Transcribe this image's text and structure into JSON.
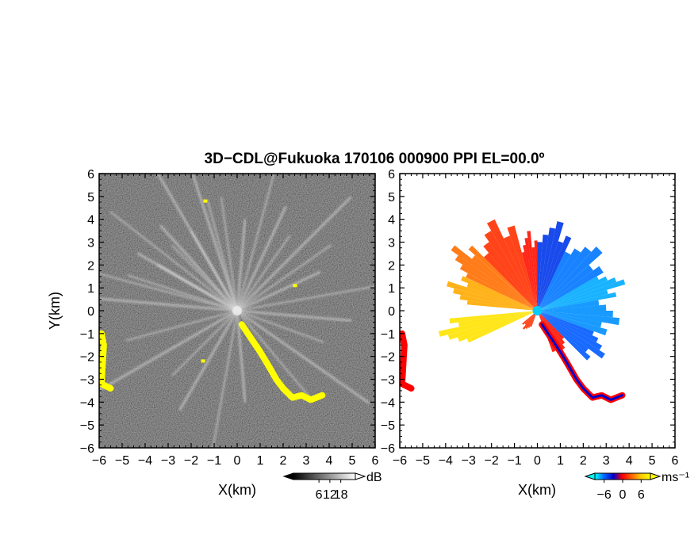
{
  "title": "3D−CDL@Fukuoka 170106 000900 PPI EL=00.0º",
  "chart_data": [
    {
      "panel": "left",
      "type": "heatmap",
      "quantity": "backscatter intensity",
      "xlabel": "X(km)",
      "ylabel": "Y(km)",
      "xlim": [
        -6,
        6
      ],
      "ylim": [
        -6,
        6
      ],
      "ticks": [
        -6,
        -5,
        -4,
        -3,
        -2,
        -1,
        0,
        1,
        2,
        3,
        4,
        5,
        6
      ],
      "tick_labels": [
        "−6",
        "−5",
        "−4",
        "−3",
        "−2",
        "−1",
        "0",
        "1",
        "2",
        "3",
        "4",
        "5",
        "6"
      ],
      "colorbar": {
        "unit": "dB",
        "range": [
          -8,
          26
        ],
        "tick_values": [
          6,
          12,
          18
        ],
        "tick_labels": [
          "6",
          "12",
          "18"
        ],
        "colors": [
          "#000000",
          "#ffffff"
        ],
        "saturation_color": "#ffff00"
      },
      "ray_azimuths_deg": [
        -85,
        -72,
        -60,
        -52,
        -42,
        -30,
        -18,
        -8,
        5,
        15,
        25,
        35,
        45,
        55,
        65,
        80,
        95,
        110,
        125,
        140,
        175,
        190,
        210,
        225,
        240,
        255,
        270,
        285,
        300,
        315,
        330,
        345
      ],
      "yellow_regions_xy_km": [
        [
          [
            0.2,
            -0.6
          ],
          [
            0.6,
            -1.2
          ],
          [
            1.0,
            -1.8
          ],
          [
            1.3,
            -2.3
          ],
          [
            1.7,
            -3.0
          ],
          [
            2.0,
            -3.4
          ],
          [
            2.4,
            -3.8
          ],
          [
            2.8,
            -3.7
          ],
          [
            3.2,
            -3.9
          ],
          [
            3.7,
            -3.7
          ]
        ],
        [
          [
            -5.9,
            -1.0
          ],
          [
            -5.8,
            -1.5
          ],
          [
            -5.9,
            -3.2
          ],
          [
            -5.5,
            -3.4
          ]
        ],
        [
          [
            -1.5,
            -2.2
          ],
          [
            2.5,
            1.1
          ],
          [
            -1.4,
            4.8
          ]
        ]
      ]
    },
    {
      "panel": "right",
      "type": "heatmap",
      "quantity": "radial velocity",
      "xlabel": "X(km)",
      "xlim": [
        -6,
        6
      ],
      "ylim": [
        -6,
        6
      ],
      "ticks": [
        -6,
        -5,
        -4,
        -3,
        -2,
        -1,
        0,
        1,
        2,
        3,
        4,
        5,
        6
      ],
      "tick_labels": [
        "−6",
        "−5",
        "−4",
        "−3",
        "−2",
        "−1",
        "0",
        "1",
        "2",
        "3",
        "4",
        "5",
        "6"
      ],
      "colorbar": {
        "unit": "ms⁻¹",
        "range": [
          -9,
          9
        ],
        "tick_values": [
          -6,
          0,
          6
        ],
        "tick_labels": [
          "−6",
          "0",
          "6"
        ],
        "colors": [
          "#00ffff",
          "#0066ff",
          "#0000cc",
          "#ff0000",
          "#ff6600",
          "#ffcc00",
          "#ffff00"
        ]
      },
      "sectors": [
        {
          "az_from": 245,
          "az_to": 265,
          "velocity": 8,
          "range_km": [
            0,
            4.4
          ]
        },
        {
          "az_from": 275,
          "az_to": 295,
          "velocity": 6,
          "range_km": [
            0,
            4.1
          ]
        },
        {
          "az_from": 295,
          "az_to": 315,
          "velocity": 4,
          "range_km": [
            0,
            4.6
          ]
        },
        {
          "az_from": 315,
          "az_to": 345,
          "velocity": 2,
          "range_km": [
            0,
            4.4
          ]
        },
        {
          "az_from": 345,
          "az_to": 360,
          "velocity": 1,
          "range_km": [
            0,
            3.5
          ]
        },
        {
          "az_from": 0,
          "az_to": 25,
          "velocity": -2,
          "range_km": [
            0,
            4.0
          ]
        },
        {
          "az_from": 25,
          "az_to": 60,
          "velocity": -4,
          "range_km": [
            0,
            3.8
          ]
        },
        {
          "az_from": 60,
          "az_to": 80,
          "velocity": -6,
          "range_km": [
            0,
            4.0
          ]
        },
        {
          "az_from": 80,
          "az_to": 110,
          "velocity": -5,
          "range_km": [
            0,
            3.6
          ]
        },
        {
          "az_from": 110,
          "az_to": 135,
          "velocity": -3,
          "range_km": [
            0,
            3.5
          ]
        },
        {
          "az_from": 135,
          "az_to": 160,
          "velocity": 1,
          "range_km": [
            0,
            2.2
          ]
        },
        {
          "az_from": 200,
          "az_to": 230,
          "velocity": 2,
          "range_km": [
            0,
            1.0
          ]
        }
      ]
    }
  ]
}
